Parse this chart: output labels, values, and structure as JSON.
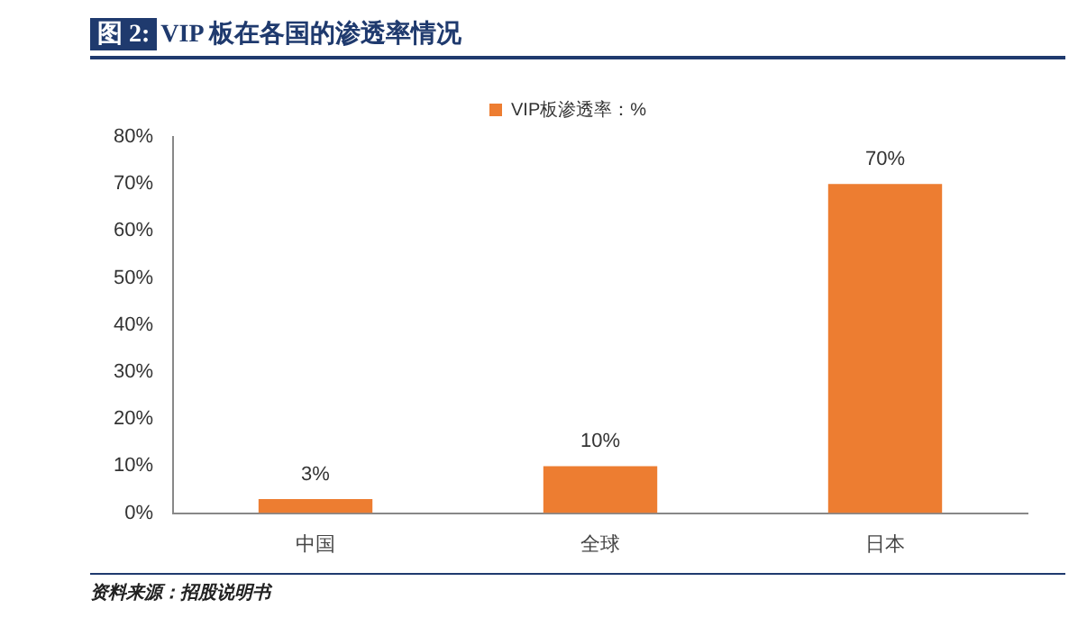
{
  "chart_data": {
    "type": "bar",
    "title": "图 2: VIP 板在各国的渗透率情况",
    "categories": [
      "中国",
      "全球",
      "日本"
    ],
    "series": [
      {
        "name": "VIP板渗透率：%",
        "color": "#ed7d31",
        "values": [
          3,
          10,
          70
        ],
        "value_labels": [
          "3%",
          "10%",
          "70%"
        ]
      }
    ],
    "ylim": [
      0,
      80
    ],
    "yticks": [
      {
        "value": 0,
        "label": "0%"
      },
      {
        "value": 10,
        "label": "10%"
      },
      {
        "value": 20,
        "label": "20%"
      },
      {
        "value": 30,
        "label": "30%"
      },
      {
        "value": 40,
        "label": "40%"
      },
      {
        "value": 50,
        "label": "50%"
      },
      {
        "value": 60,
        "label": "60%"
      },
      {
        "value": 70,
        "label": "70%"
      },
      {
        "value": 80,
        "label": "80%"
      }
    ],
    "grid": false,
    "legend": "top",
    "annotations": [
      "资料来源：招股说明书"
    ]
  }
}
